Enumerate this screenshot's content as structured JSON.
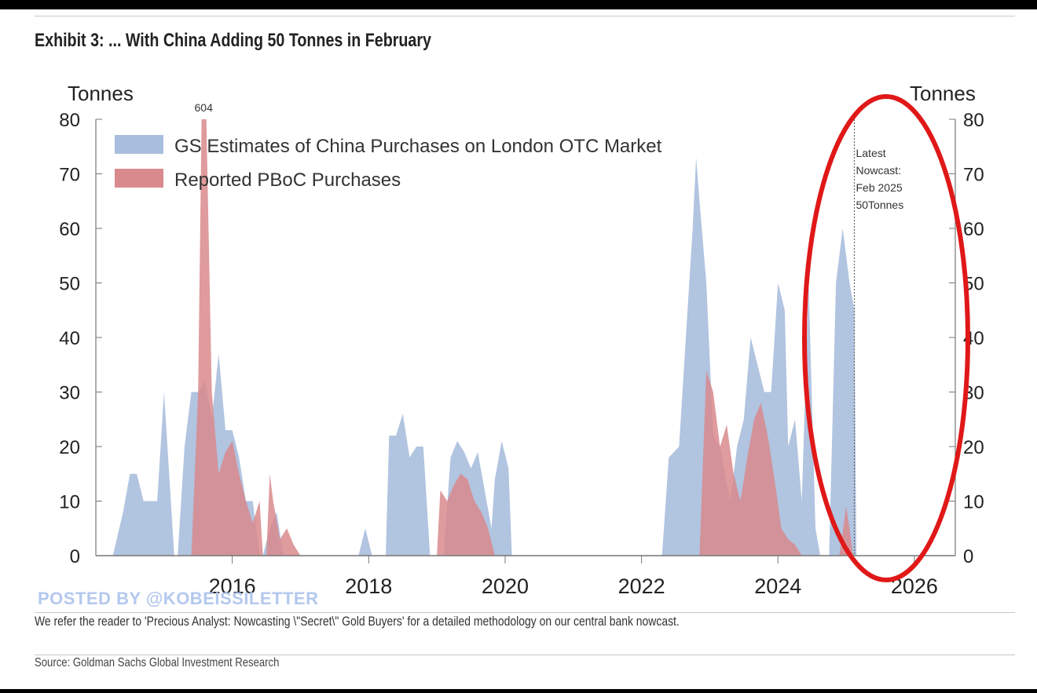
{
  "header": {
    "title": "Exhibit 3: ... With China Adding 50 Tonnes in February"
  },
  "footer": {
    "watermark": "POSTED BY @KOBEISSILETTER",
    "note": "We refer the reader to 'Precious Analyst: Nowcasting \\\"Secret\\\" Gold Buyers' for a detailed methodology on our central bank nowcast.",
    "source": "Source: Goldman Sachs Global Investment Research"
  },
  "colors": {
    "gs_fill": "#a8bedd",
    "pboc_fill": "#d98a8c",
    "axis": "#777777",
    "circle": "#e01818",
    "nowcast_line": "#666666"
  },
  "chart_data": {
    "type": "area",
    "title": "Exhibit 3: ... With China Adding 50 Tonnes in February",
    "ylabel_left": "Tonnes",
    "ylabel_right": "Tonnes",
    "ylim": [
      0,
      80
    ],
    "yticks": [
      0,
      10,
      20,
      30,
      40,
      50,
      60,
      70,
      80
    ],
    "xlim": [
      2014.0,
      2026.6
    ],
    "xticks": [
      2016,
      2018,
      2020,
      2022,
      2024,
      2026
    ],
    "legend_position": "top-left",
    "annotation_604": {
      "text": "604",
      "x": 2015.58,
      "y": 80
    },
    "nowcast": {
      "x": 2025.12,
      "lines": [
        "Latest",
        "Nowcast:",
        "Feb 2025",
        "50Tonnes"
      ]
    },
    "series": [
      {
        "name": "GS Estimates of China Purchases on London OTC Market",
        "color": "#a8bedd",
        "points": [
          [
            2014.25,
            0
          ],
          [
            2014.4,
            8
          ],
          [
            2014.5,
            15
          ],
          [
            2014.6,
            15
          ],
          [
            2014.7,
            10
          ],
          [
            2014.8,
            10
          ],
          [
            2014.9,
            10
          ],
          [
            2015.0,
            30
          ],
          [
            2015.1,
            10
          ],
          [
            2015.15,
            0
          ],
          [
            2015.2,
            0
          ],
          [
            2015.3,
            20
          ],
          [
            2015.4,
            30
          ],
          [
            2015.5,
            30
          ],
          [
            2015.6,
            32
          ],
          [
            2015.7,
            25
          ],
          [
            2015.8,
            37
          ],
          [
            2015.9,
            23
          ],
          [
            2016.0,
            23
          ],
          [
            2016.1,
            18
          ],
          [
            2016.2,
            10
          ],
          [
            2016.3,
            10
          ],
          [
            2016.4,
            0
          ],
          [
            2016.45,
            0
          ],
          [
            2016.55,
            5
          ],
          [
            2016.65,
            8
          ],
          [
            2016.75,
            0
          ],
          [
            2017.85,
            0
          ],
          [
            2017.95,
            5
          ],
          [
            2018.05,
            0
          ],
          [
            2018.25,
            0
          ],
          [
            2018.3,
            22
          ],
          [
            2018.4,
            22
          ],
          [
            2018.5,
            26
          ],
          [
            2018.6,
            18
          ],
          [
            2018.7,
            20
          ],
          [
            2018.8,
            20
          ],
          [
            2018.9,
            0
          ],
          [
            2019.1,
            0
          ],
          [
            2019.2,
            18
          ],
          [
            2019.3,
            21
          ],
          [
            2019.4,
            19
          ],
          [
            2019.5,
            16
          ],
          [
            2019.6,
            19
          ],
          [
            2019.7,
            12
          ],
          [
            2019.8,
            5
          ],
          [
            2019.85,
            14
          ],
          [
            2019.95,
            21
          ],
          [
            2020.05,
            16
          ],
          [
            2020.1,
            0
          ],
          [
            2022.3,
            0
          ],
          [
            2022.4,
            18
          ],
          [
            2022.55,
            20
          ],
          [
            2022.65,
            40
          ],
          [
            2022.75,
            60
          ],
          [
            2022.8,
            73
          ],
          [
            2022.85,
            65
          ],
          [
            2022.95,
            50
          ],
          [
            2023.05,
            22
          ],
          [
            2023.15,
            20
          ],
          [
            2023.3,
            10
          ],
          [
            2023.4,
            20
          ],
          [
            2023.5,
            25
          ],
          [
            2023.6,
            40
          ],
          [
            2023.7,
            35
          ],
          [
            2023.8,
            30
          ],
          [
            2023.9,
            30
          ],
          [
            2024.0,
            50
          ],
          [
            2024.1,
            45
          ],
          [
            2024.15,
            20
          ],
          [
            2024.25,
            25
          ],
          [
            2024.35,
            10
          ],
          [
            2024.45,
            50
          ],
          [
            2024.55,
            5
          ],
          [
            2024.62,
            0
          ],
          [
            2024.75,
            0
          ],
          [
            2024.85,
            50
          ],
          [
            2024.95,
            60
          ],
          [
            2025.05,
            50
          ],
          [
            2025.12,
            45
          ],
          [
            2025.15,
            0
          ]
        ]
      },
      {
        "name": "Reported PBoC Purchases",
        "color": "#d98a8c",
        "points": [
          [
            2015.4,
            0
          ],
          [
            2015.5,
            30
          ],
          [
            2015.55,
            80
          ],
          [
            2015.62,
            80
          ],
          [
            2015.7,
            30
          ],
          [
            2015.8,
            15
          ],
          [
            2015.9,
            19
          ],
          [
            2016.0,
            21
          ],
          [
            2016.1,
            15
          ],
          [
            2016.2,
            10
          ],
          [
            2016.3,
            6
          ],
          [
            2016.4,
            10
          ],
          [
            2016.45,
            0
          ],
          [
            2016.5,
            0
          ],
          [
            2016.55,
            15
          ],
          [
            2016.6,
            10
          ],
          [
            2016.7,
            3
          ],
          [
            2016.8,
            5
          ],
          [
            2016.9,
            2
          ],
          [
            2017.0,
            0
          ],
          [
            2019.0,
            0
          ],
          [
            2019.05,
            12
          ],
          [
            2019.15,
            10
          ],
          [
            2019.25,
            13
          ],
          [
            2019.35,
            15
          ],
          [
            2019.45,
            14
          ],
          [
            2019.55,
            10
          ],
          [
            2019.65,
            8
          ],
          [
            2019.75,
            5
          ],
          [
            2019.85,
            0
          ],
          [
            2022.85,
            0
          ],
          [
            2022.95,
            34
          ],
          [
            2023.05,
            30
          ],
          [
            2023.15,
            20
          ],
          [
            2023.25,
            24
          ],
          [
            2023.35,
            15
          ],
          [
            2023.45,
            10
          ],
          [
            2023.55,
            18
          ],
          [
            2023.65,
            25
          ],
          [
            2023.75,
            28
          ],
          [
            2023.85,
            22
          ],
          [
            2023.95,
            14
          ],
          [
            2024.05,
            5
          ],
          [
            2024.15,
            3
          ],
          [
            2024.25,
            2
          ],
          [
            2024.35,
            0
          ],
          [
            2024.9,
            0
          ],
          [
            2025.0,
            9
          ],
          [
            2025.05,
            5
          ],
          [
            2025.1,
            0
          ]
        ]
      }
    ]
  }
}
